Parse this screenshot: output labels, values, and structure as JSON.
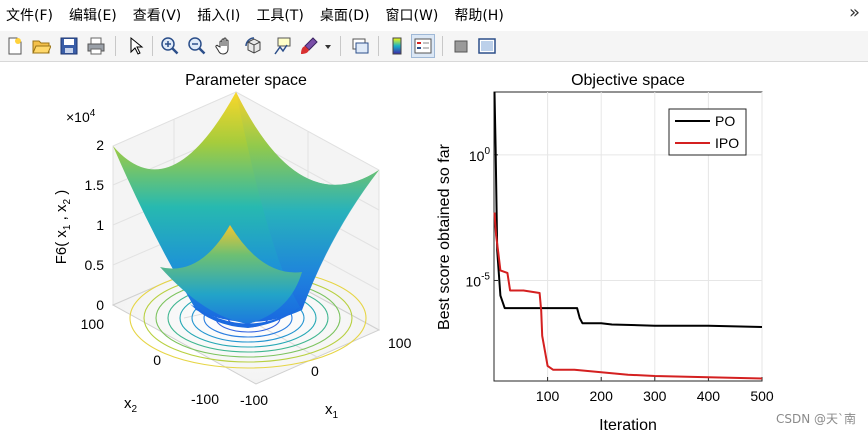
{
  "menubar": {
    "items": [
      "文件(F)",
      "编辑(E)",
      "查看(V)",
      "插入(I)",
      "工具(T)",
      "桌面(D)",
      "窗口(W)",
      "帮助(H)"
    ],
    "close_glyph": "»"
  },
  "toolbar": {
    "icons": [
      "new-figure-icon",
      "open-file-icon",
      "save-icon",
      "print-icon",
      "pointer-icon",
      "zoom-in-icon",
      "zoom-out-icon",
      "pan-hand-icon",
      "rotate-3d-icon",
      "data-cursor-icon",
      "brush-icon",
      "brush-dropdown-icon",
      "link-plot-icon",
      "colorbar-icon",
      "legend-icon",
      "hide-plot-tools-icon",
      "show-plot-tools-icon"
    ]
  },
  "left_plot": {
    "title": "Parameter space",
    "zlabel": "F6( x 1 , x 2 )",
    "zlabel_parts": {
      "pre": "F6( x",
      "s1": "1",
      "mid": " , x",
      "s2": "2",
      "post": " )"
    },
    "exponent": "×10",
    "exponent_power": "4",
    "z_ticks": [
      "0",
      "0.5",
      "1",
      "1.5",
      "2"
    ],
    "x2_ticks": [
      "100",
      "0",
      "-100"
    ],
    "x1_ticks": [
      "-100",
      "0",
      "100"
    ],
    "xlabel": "x",
    "xlabel_sub": "1",
    "ylabel": "x",
    "ylabel_sub": "2"
  },
  "chart_data": {
    "type": "line",
    "title": "Objective space",
    "xlabel": "Iteration",
    "ylabel": "Best score obtained so far",
    "yscale": "log",
    "xlim": [
      0,
      500
    ],
    "ylim_log10": [
      -9,
      2.5
    ],
    "x_ticks": [
      "100",
      "200",
      "300",
      "400",
      "500"
    ],
    "y_ticks": [
      {
        "base": "10",
        "exp": "0",
        "log": 0
      },
      {
        "base": "10",
        "exp": "-5",
        "log": -5
      }
    ],
    "legend_position": "top-right",
    "series": [
      {
        "name": "PO",
        "color": "#000000",
        "log_values": [
          [
            1,
            2.5
          ],
          [
            3,
            0.3
          ],
          [
            6,
            -3.8
          ],
          [
            12,
            -5.6
          ],
          [
            20,
            -6.1
          ],
          [
            60,
            -6.1
          ],
          [
            80,
            -6.1
          ],
          [
            130,
            -6.1
          ],
          [
            155,
            -6.1
          ],
          [
            160,
            -6.5
          ],
          [
            165,
            -6.7
          ],
          [
            200,
            -6.7
          ],
          [
            220,
            -6.75
          ],
          [
            300,
            -6.8
          ],
          [
            400,
            -6.8
          ],
          [
            500,
            -6.85
          ]
        ]
      },
      {
        "name": "IPO",
        "color": "#d42020",
        "log_values": [
          [
            1,
            -2.3
          ],
          [
            4,
            -3.2
          ],
          [
            8,
            -3.9
          ],
          [
            12,
            -4.6
          ],
          [
            25,
            -4.7
          ],
          [
            30,
            -5.4
          ],
          [
            55,
            -5.4
          ],
          [
            85,
            -5.5
          ],
          [
            88,
            -6.2
          ],
          [
            90,
            -7.2
          ],
          [
            95,
            -7.8
          ],
          [
            100,
            -8.4
          ],
          [
            110,
            -8.55
          ],
          [
            150,
            -8.55
          ],
          [
            200,
            -8.65
          ],
          [
            250,
            -8.75
          ],
          [
            300,
            -8.8
          ],
          [
            400,
            -8.85
          ],
          [
            500,
            -8.9
          ]
        ]
      }
    ]
  },
  "watermark": "CSDN @天`南"
}
